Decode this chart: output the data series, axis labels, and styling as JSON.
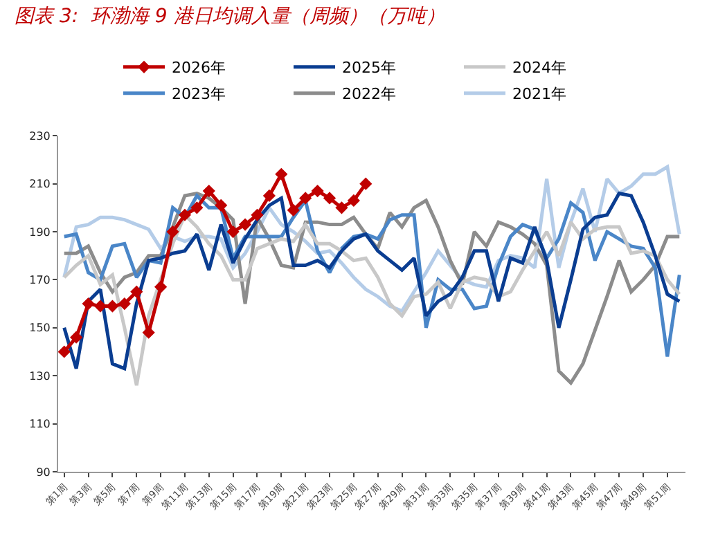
{
  "chart_data": {
    "type": "line",
    "title": "图表 3:  环渤海 9 港日均调入量（周频）（万吨）",
    "categories": [
      "第1周",
      null,
      "第3周",
      null,
      "第5周",
      null,
      "第7周",
      null,
      "第9周",
      null,
      "第11周",
      null,
      "第13周",
      null,
      "第15周",
      null,
      "第17周",
      null,
      "第19周",
      null,
      "第21周",
      null,
      "第23周",
      null,
      "第25周",
      null,
      "第27周",
      null,
      "第29周",
      null,
      "第31周",
      null,
      "第33周",
      null,
      "第35周",
      null,
      "第37周",
      null,
      "第39周",
      null,
      "第41周",
      null,
      "第43周",
      null,
      "第45周",
      null,
      "第47周",
      null,
      "第49周",
      null,
      "第51周",
      null
    ],
    "ylim": [
      90,
      230
    ],
    "yticks": [
      90,
      110,
      130,
      150,
      170,
      190,
      210,
      230
    ],
    "legend": "top",
    "marker": "none",
    "series": [
      {
        "name": "2026年",
        "color": "#c00000",
        "marker": "diamond",
        "values": [
          140,
          146,
          160,
          159,
          159,
          160,
          165,
          148,
          167,
          190,
          197,
          200,
          207,
          201,
          190,
          193,
          197,
          205,
          214,
          199,
          204,
          207,
          204,
          200,
          203,
          210,
          null,
          null,
          null,
          null,
          null,
          null,
          null,
          null,
          null,
          null,
          null,
          null,
          null,
          null,
          null,
          null,
          null,
          null,
          null,
          null,
          null,
          null,
          null,
          null,
          null,
          null
        ]
      },
      {
        "name": "2025年",
        "color": "#0a3d91",
        "values": [
          150,
          133,
          161,
          166,
          135,
          133,
          160,
          178,
          179,
          181,
          182,
          189,
          174,
          193,
          177,
          187,
          195,
          201,
          204,
          176,
          176,
          178,
          175,
          182,
          187,
          189,
          182,
          178,
          174,
          179,
          155,
          161,
          164,
          171,
          182,
          182,
          161,
          179,
          177,
          192,
          178,
          150,
          170,
          191,
          196,
          197,
          206,
          205,
          194,
          180,
          164,
          161
        ]
      },
      {
        "name": "2024年",
        "color": "#c8c8c8",
        "values": [
          171,
          176,
          180,
          168,
          172,
          150,
          126,
          155,
          170,
          185,
          197,
          192,
          185,
          180,
          170,
          170,
          183,
          185,
          187,
          186,
          193,
          185,
          185,
          182,
          178,
          179,
          171,
          160,
          155,
          163,
          164,
          169,
          158,
          169,
          171,
          170,
          163,
          165,
          174,
          182,
          190,
          180,
          194,
          187,
          191,
          192,
          192,
          181,
          182,
          180,
          170,
          164
        ]
      },
      {
        "name": "2023年",
        "color": "#4a86c8",
        "values": [
          188,
          189,
          173,
          170,
          184,
          185,
          171,
          178,
          177,
          200,
          196,
          205,
          200,
          200,
          179,
          188,
          188,
          188,
          188,
          196,
          203,
          182,
          173,
          183,
          188,
          189,
          187,
          195,
          197,
          197,
          150,
          170,
          166,
          166,
          158,
          159,
          176,
          188,
          193,
          191,
          179,
          187,
          202,
          198,
          178,
          190,
          187,
          184,
          183,
          175,
          138,
          172
        ]
      },
      {
        "name": "2022年",
        "color": "#8c8c8c",
        "values": [
          181,
          181,
          184,
          173,
          165,
          171,
          173,
          180,
          180,
          192,
          205,
          206,
          204,
          200,
          195,
          160,
          196,
          187,
          176,
          175,
          194,
          194,
          193,
          193,
          196,
          189,
          183,
          198,
          192,
          200,
          203,
          192,
          178,
          168,
          190,
          184,
          194,
          192,
          189,
          185,
          176,
          132,
          127,
          135,
          149,
          163,
          178,
          165,
          170,
          176,
          188,
          188
        ]
      },
      {
        "name": "2021年",
        "color": "#b4cce8",
        "values": [
          171,
          192,
          193,
          196,
          196,
          195,
          193,
          191,
          183,
          188,
          186,
          188,
          188,
          187,
          175,
          181,
          190,
          200,
          193,
          190,
          186,
          181,
          182,
          177,
          171,
          166,
          163,
          159,
          157,
          165,
          173,
          182,
          176,
          170,
          168,
          167,
          178,
          180,
          179,
          175,
          212,
          175,
          194,
          208,
          190,
          212,
          206,
          209,
          214,
          214,
          217,
          189
        ]
      }
    ]
  }
}
